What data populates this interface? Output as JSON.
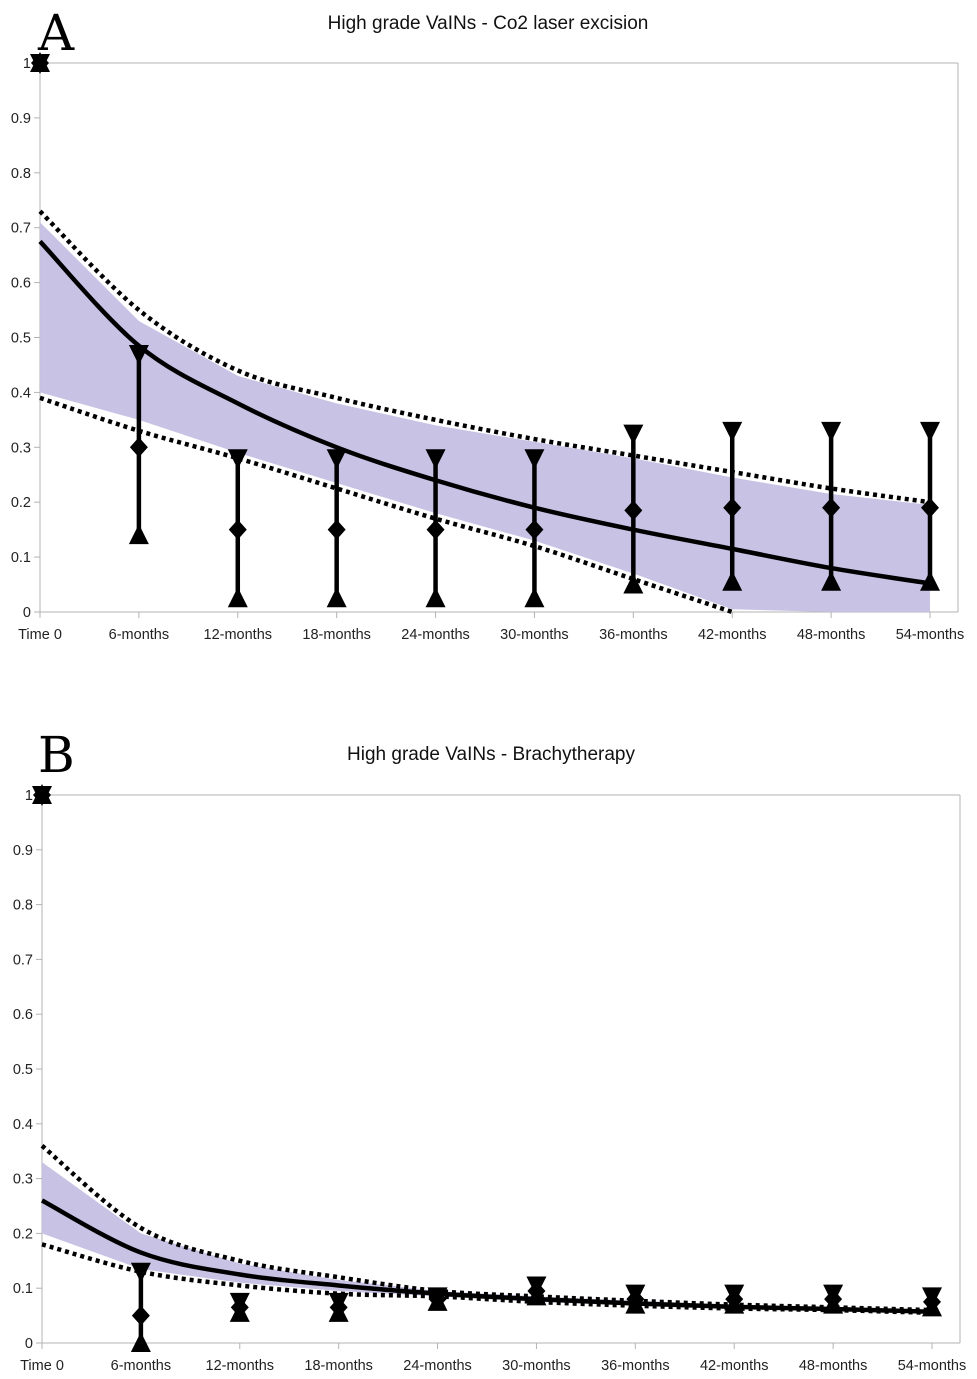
{
  "chart_data": [
    {
      "panel": "A",
      "type": "line",
      "title": "High grade VaINs - Co2 laser excision",
      "xlabel": "",
      "ylabel": "",
      "ylim": [
        0,
        1
      ],
      "yticks": [
        "0",
        "0.1",
        "0.2",
        "0.3",
        "0.4",
        "0.5",
        "0.6",
        "0.7",
        "0.8",
        "0.9",
        "1"
      ],
      "categories": [
        "Time 0",
        "6-months",
        "12-months",
        "18-months",
        "24-months",
        "30-months",
        "36-months",
        "42-months",
        "48-months",
        "54-months"
      ],
      "grid": false,
      "band_color": "#c5bfe3",
      "observed": {
        "name": "Observed (with error bars)",
        "values": [
          1.0,
          0.3,
          0.15,
          0.15,
          0.15,
          0.15,
          0.185,
          0.19,
          0.19,
          0.19
        ],
        "upper": [
          1.0,
          0.47,
          0.28,
          0.28,
          0.28,
          0.28,
          0.325,
          0.33,
          0.33,
          0.33
        ],
        "lower": [
          1.0,
          0.14,
          0.025,
          0.025,
          0.025,
          0.025,
          0.05,
          0.055,
          0.055,
          0.055
        ]
      },
      "fit": {
        "name": "Fitted curve",
        "values": [
          0.675,
          0.485,
          0.38,
          0.3,
          0.24,
          0.19,
          0.15,
          0.115,
          0.08,
          0.052
        ]
      },
      "ci_upper": {
        "name": "Upper confidence bound",
        "values": [
          0.73,
          0.55,
          0.44,
          0.39,
          0.35,
          0.315,
          0.285,
          0.255,
          0.225,
          0.2
        ]
      },
      "ci_lower": {
        "name": "Lower confidence bound",
        "values": [
          0.39,
          0.33,
          0.28,
          0.225,
          0.17,
          0.12,
          0.06,
          0.0,
          null,
          null
        ]
      },
      "band_upper": [
        0.71,
        0.53,
        0.43,
        0.38,
        0.34,
        0.31,
        0.28,
        0.245,
        0.215,
        0.195
      ],
      "band_lower": [
        0.4,
        0.35,
        0.29,
        0.235,
        0.18,
        0.13,
        0.07,
        0.005,
        0.0,
        0.0
      ]
    },
    {
      "panel": "B",
      "type": "line",
      "title": "High grade VaINs - Brachytherapy",
      "xlabel": "",
      "ylabel": "",
      "ylim": [
        0,
        1
      ],
      "yticks": [
        "0",
        "0.1",
        "0.2",
        "0.3",
        "0.4",
        "0.5",
        "0.6",
        "0.7",
        "0.8",
        "0.9",
        "1"
      ],
      "categories": [
        "Time 0",
        "6-months",
        "12-months",
        "18-months",
        "24-months",
        "30-months",
        "36-months",
        "42-months",
        "48-months",
        "54-months"
      ],
      "grid": false,
      "band_color": "#c5bfe3",
      "observed": {
        "name": "Observed (with error bars)",
        "values": [
          1.0,
          0.05,
          0.065,
          0.065,
          0.08,
          0.095,
          0.08,
          0.08,
          0.08,
          0.075
        ],
        "upper": [
          1.0,
          0.13,
          0.075,
          0.075,
          0.085,
          0.105,
          0.09,
          0.09,
          0.09,
          0.085
        ],
        "lower": [
          1.0,
          0.0,
          0.055,
          0.055,
          0.075,
          0.085,
          0.07,
          0.07,
          0.07,
          0.065
        ]
      },
      "fit": {
        "name": "Fitted curve",
        "values": [
          0.26,
          0.165,
          0.125,
          0.105,
          0.09,
          0.08,
          0.072,
          0.066,
          0.062,
          0.057
        ]
      },
      "ci_upper": {
        "name": "Upper confidence bound",
        "values": [
          0.36,
          0.21,
          0.15,
          0.12,
          0.095,
          0.085,
          0.077,
          0.07,
          0.065,
          0.06
        ]
      },
      "ci_lower": {
        "name": "Lower confidence bound",
        "values": [
          0.18,
          0.13,
          0.105,
          0.09,
          0.085,
          0.075,
          0.068,
          0.063,
          0.06,
          0.055
        ]
      },
      "band_upper": [
        0.33,
        0.2,
        0.145,
        0.115,
        0.095,
        0.085,
        0.077,
        0.07,
        0.065,
        0.06
      ],
      "band_lower": [
        0.2,
        0.135,
        0.11,
        0.095,
        0.085,
        0.075,
        0.068,
        0.063,
        0.06,
        0.055
      ]
    }
  ]
}
